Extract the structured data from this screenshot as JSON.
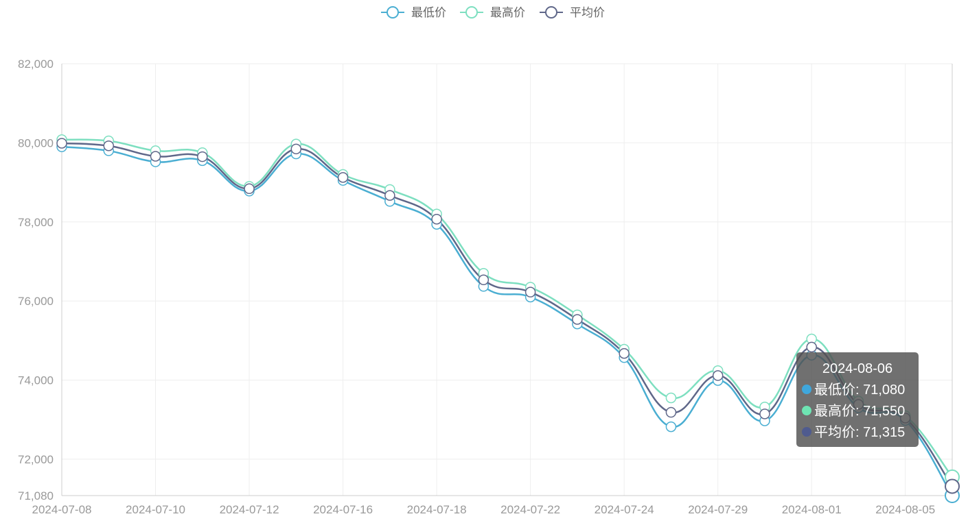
{
  "chart_data": {
    "type": "line",
    "smooth": true,
    "legend_position": "top-center",
    "grid": true,
    "y_ticks": [
      71080,
      72000,
      74000,
      76000,
      78000,
      80000,
      82000
    ],
    "y_tick_labels": [
      "71,080",
      "72,000",
      "74,000",
      "76,000",
      "78,000",
      "80,000",
      "82,000"
    ],
    "ylim": [
      71080,
      82000
    ],
    "x_tick_labels": [
      "2024-07-08",
      "2024-07-10",
      "2024-07-12",
      "2024-07-16",
      "2024-07-18",
      "2024-07-22",
      "2024-07-24",
      "2024-07-29",
      "2024-08-01",
      "2024-08-05"
    ],
    "series": [
      {
        "name": "最低价",
        "color": "#4aaed2",
        "values": [
          79900,
          79800,
          79520,
          79550,
          78780,
          79720,
          79050,
          78520,
          77940,
          76370,
          76100,
          75420,
          74570,
          72820,
          73990,
          72970,
          74630,
          73300,
          72980,
          71080
        ]
      },
      {
        "name": "最高价",
        "color": "#7ddfc0",
        "values": [
          80080,
          80050,
          79800,
          79750,
          78900,
          79970,
          79200,
          78820,
          78200,
          76700,
          76350,
          75650,
          74780,
          73550,
          74240,
          73320,
          75040,
          73470,
          73100,
          71550
        ]
      },
      {
        "name": "平均价",
        "color": "#5f6789",
        "values": [
          79990,
          79925,
          79660,
          79650,
          78840,
          79845,
          79125,
          78670,
          78070,
          76535,
          76225,
          75535,
          74675,
          73185,
          74115,
          73145,
          74835,
          73385,
          73040,
          71315
        ]
      }
    ],
    "tooltip": {
      "title": "2024-08-06",
      "rows": [
        "最低价: 71,080",
        "最高价: 71,550",
        "平均价: 71,315"
      ],
      "dot_colors": [
        "#3fa7dc",
        "#6ee4b3",
        "#4f5b8f"
      ]
    }
  }
}
